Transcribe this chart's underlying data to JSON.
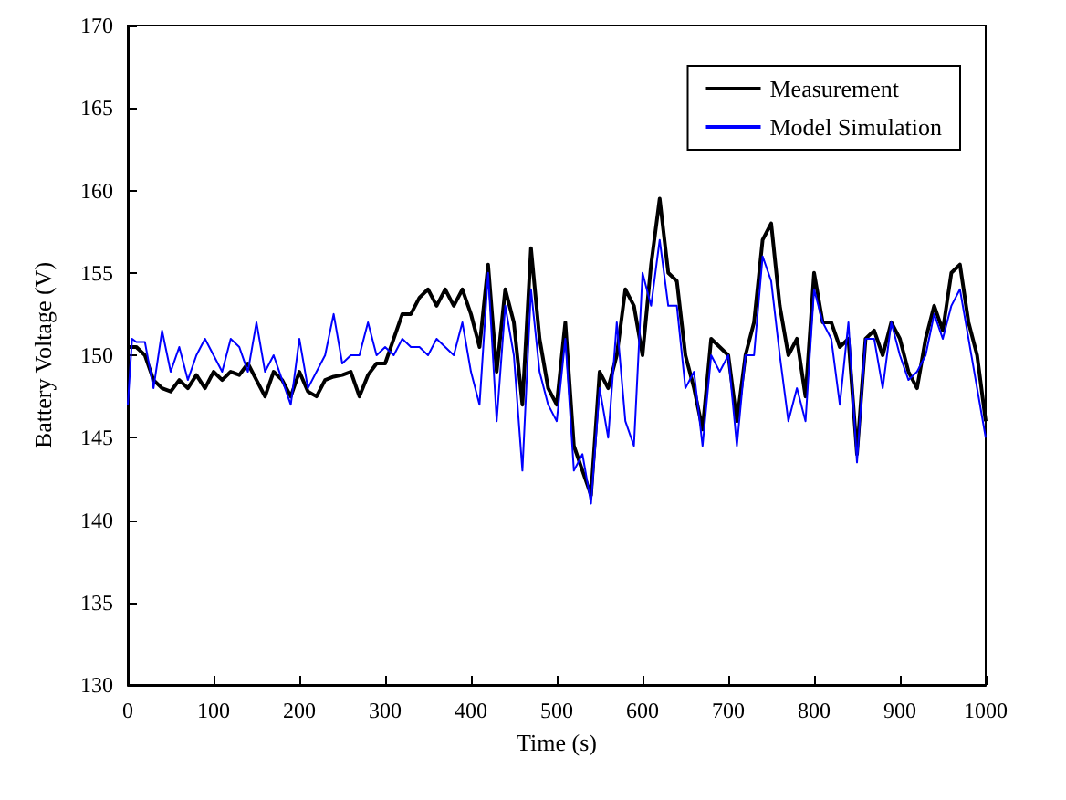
{
  "chart_data": {
    "type": "line",
    "xlabel": "Time (s)",
    "ylabel": "Battery Voltage (V)",
    "x": [
      0,
      5,
      10,
      20,
      30,
      40,
      50,
      60,
      70,
      80,
      90,
      100,
      110,
      120,
      130,
      140,
      150,
      160,
      170,
      180,
      190,
      200,
      210,
      220,
      230,
      240,
      250,
      260,
      270,
      280,
      290,
      300,
      310,
      320,
      330,
      340,
      350,
      360,
      370,
      380,
      390,
      400,
      410,
      420,
      430,
      440,
      450,
      460,
      470,
      480,
      490,
      500,
      510,
      520,
      530,
      540,
      550,
      560,
      570,
      580,
      590,
      600,
      610,
      620,
      630,
      640,
      650,
      660,
      670,
      680,
      690,
      700,
      710,
      720,
      730,
      740,
      750,
      760,
      770,
      780,
      790,
      800,
      810,
      820,
      830,
      840,
      850,
      860,
      870,
      880,
      890,
      900,
      910,
      920,
      930,
      940,
      950,
      960,
      970,
      980,
      990,
      1000
    ],
    "series": [
      {
        "name": "Measurement",
        "color": "#000000",
        "values": [
          150.5,
          150.5,
          150.5,
          150,
          148.5,
          148,
          147.8,
          148.5,
          148,
          148.8,
          148,
          149,
          148.5,
          149,
          148.8,
          149.5,
          148.5,
          147.5,
          149,
          148.5,
          147.5,
          149,
          147.8,
          147.5,
          148.5,
          148.7,
          148.8,
          149,
          147.5,
          148.8,
          149.5,
          149.5,
          151,
          152.5,
          152.5,
          153.5,
          154,
          153,
          154,
          153,
          154,
          152.5,
          150.5,
          155.5,
          149,
          154,
          152,
          147,
          156.5,
          151,
          148,
          147,
          152,
          144.5,
          143,
          141.5,
          149,
          148,
          150,
          154,
          153,
          150,
          155.5,
          159.5,
          155,
          154.5,
          150,
          148,
          145.5,
          151,
          150.5,
          150,
          146,
          150,
          152,
          157,
          158,
          153,
          150,
          151,
          147.5,
          155,
          152,
          152,
          150.5,
          151,
          144,
          151,
          151.5,
          150,
          152,
          151,
          149,
          148,
          151,
          153,
          151.5,
          155,
          155.5,
          152,
          150,
          146
        ]
      },
      {
        "name": "Model Simulation",
        "color": "#0000ff",
        "values": [
          147,
          151,
          150.8,
          150.8,
          148,
          151.5,
          149,
          150.5,
          148.5,
          150,
          151,
          150,
          149,
          151,
          150.5,
          149,
          152,
          149,
          150,
          148.5,
          147,
          151,
          148,
          149,
          150,
          152.5,
          149.5,
          150,
          150,
          152,
          150,
          150.5,
          150,
          151,
          150.5,
          150.5,
          150,
          151,
          150.5,
          150,
          152,
          149,
          147,
          155,
          146,
          153,
          150,
          143,
          154,
          149,
          147,
          146,
          151,
          143,
          144,
          141,
          148,
          145,
          152,
          146,
          144.5,
          155,
          153,
          157,
          153,
          153,
          148,
          149,
          144.5,
          150,
          149,
          150,
          144.5,
          150,
          150,
          156,
          154.5,
          150,
          146,
          148,
          146,
          154,
          152,
          151,
          147,
          152,
          143.5,
          151,
          151,
          148,
          152,
          150,
          148.5,
          149,
          150,
          152.5,
          151,
          153,
          154,
          151,
          148,
          145
        ]
      }
    ],
    "xlim": [
      0,
      1000
    ],
    "xticks": [
      0,
      100,
      200,
      300,
      400,
      500,
      600,
      700,
      800,
      900,
      1000
    ],
    "ylim": [
      130,
      170
    ],
    "yticks": [
      130,
      135,
      140,
      145,
      150,
      155,
      160,
      165,
      170
    ],
    "legend": "top right",
    "grid": false,
    "marker": "none",
    "line_style": "solid"
  }
}
